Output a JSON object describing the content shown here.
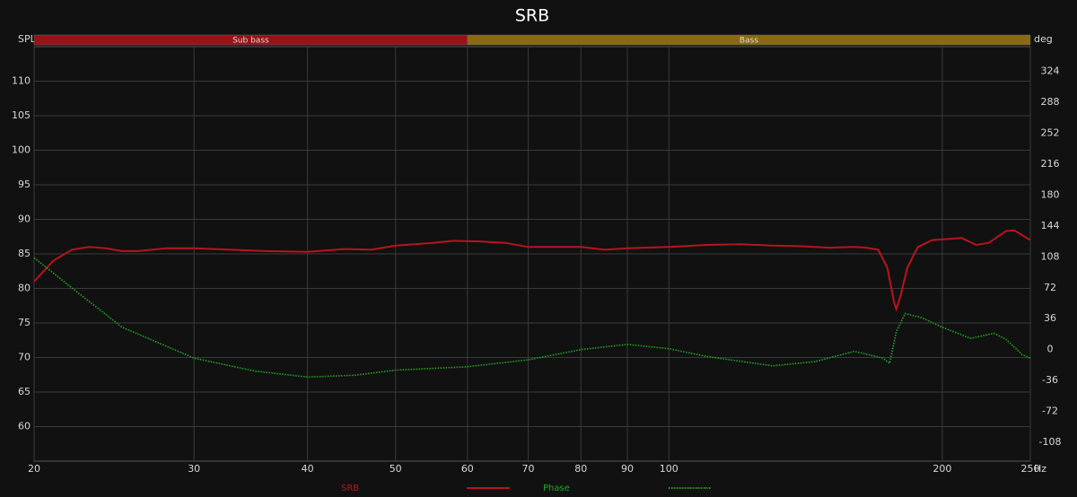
{
  "chart_data": {
    "type": "line",
    "title": "SRB",
    "y_label": "SPL",
    "y2_label": "deg",
    "x_label": "Hz",
    "log_x": true,
    "grid": true,
    "xlim": [
      20,
      250
    ],
    "xticks": [
      20,
      30,
      40,
      50,
      60,
      70,
      80,
      90,
      100,
      200,
      250
    ],
    "ylim": [
      55,
      115
    ],
    "yticks": [
      60,
      65,
      70,
      75,
      80,
      85,
      90,
      95,
      100,
      105,
      110
    ],
    "y2lim": [
      -130,
      353
    ],
    "y2ticks": [
      -108,
      -72,
      -36,
      0,
      36,
      72,
      108,
      144,
      180,
      216,
      252,
      288,
      324
    ],
    "bands": [
      {
        "label": "Sub bass",
        "from": 20,
        "to": 60,
        "color": "#9a1218"
      },
      {
        "label": "Bass",
        "from": 60,
        "to": 250,
        "color": "#8a6a10"
      }
    ],
    "series": [
      {
        "name": "SRB",
        "color": "#b8141e",
        "dash": false,
        "x": [
          20,
          21,
          22,
          23,
          24,
          25,
          26,
          28,
          30,
          33,
          36,
          40,
          44,
          47,
          50,
          55,
          58,
          62,
          66,
          70,
          75,
          80,
          85,
          90,
          100,
          110,
          120,
          130,
          140,
          150,
          160,
          165,
          170,
          174,
          177,
          178,
          180,
          183,
          188,
          195,
          205,
          210,
          218,
          225,
          235,
          240,
          250
        ],
        "values": [
          81,
          84,
          85.6,
          86,
          85.8,
          85.4,
          85.4,
          85.8,
          85.8,
          85.6,
          85.4,
          85.3,
          85.7,
          85.6,
          86.2,
          86.6,
          86.9,
          86.8,
          86.6,
          86.0,
          86.0,
          86.0,
          85.6,
          85.8,
          86.0,
          86.3,
          86.4,
          86.2,
          86.1,
          85.9,
          86.0,
          85.9,
          85.6,
          83,
          78,
          77,
          79,
          83,
          86,
          87,
          87.2,
          87.3,
          86.3,
          86.6,
          88.3,
          88.4,
          87.0
        ]
      },
      {
        "name": "Phase",
        "color": "#22a822",
        "dash": true,
        "axis": "y2",
        "x": [
          20,
          22,
          25,
          30,
          35,
          40,
          45,
          50,
          60,
          70,
          80,
          90,
          100,
          110,
          130,
          145,
          160,
          172,
          175,
          178,
          182,
          190,
          200,
          215,
          228,
          235,
          245,
          250
        ],
        "values": [
          107,
          72,
          26,
          -10,
          -25,
          -32,
          -30,
          -24,
          -20,
          -12,
          0,
          6,
          1,
          -8,
          -19,
          -14,
          -2,
          -10,
          -16,
          21,
          42,
          37,
          26,
          13,
          19,
          12,
          -6,
          -10
        ]
      }
    ]
  }
}
